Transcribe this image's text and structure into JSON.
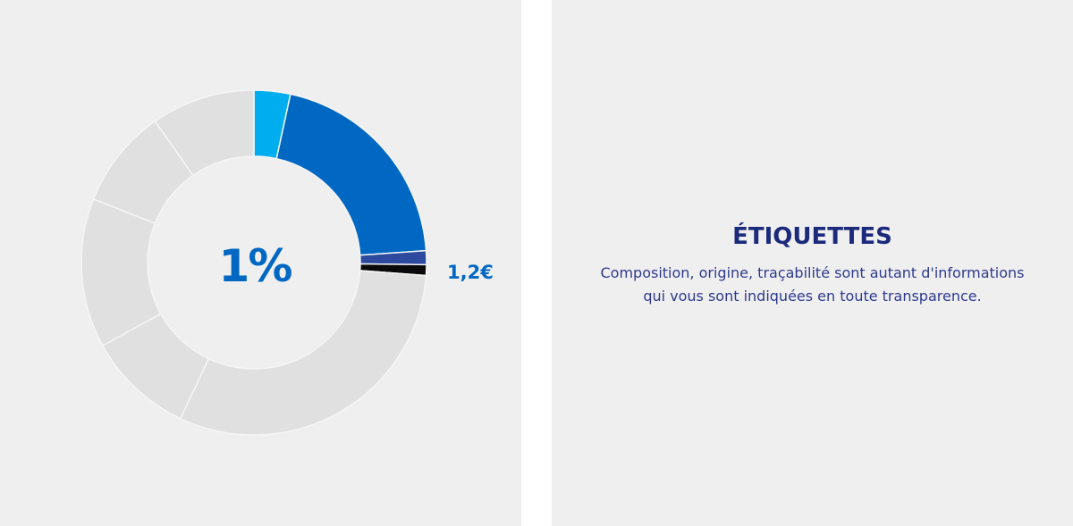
{
  "chart_data": {
    "type": "pie",
    "style": "donut",
    "center_label": "1%",
    "slices": [
      {
        "value": 3.4,
        "color": "#00aeef"
      },
      {
        "value": 20.5,
        "color": "#0068c3"
      },
      {
        "value": 1.3,
        "color": "#2d4a9e"
      },
      {
        "value": 1.0,
        "color": "#0a0a0a",
        "label": "1,2€",
        "highlighted": true
      },
      {
        "value": 30.8,
        "color": "#e0e0e0"
      },
      {
        "value": 10.0,
        "color": "#e0e0e0"
      },
      {
        "value": 14.0,
        "color": "#e0e0e0"
      },
      {
        "value": 9.3,
        "color": "#e0e0e0"
      },
      {
        "value": 9.7,
        "color": "#e0e0e0"
      }
    ],
    "highlight_label": "1,2€"
  },
  "info": {
    "title": "ÉTIQUETTES",
    "text_line1": "Composition, origine, traçabilité sont autant d'informations",
    "text_line2": "qui vous sont indiquées en toute transparence."
  },
  "colors": {
    "panel_background": "#efeff0",
    "accent_blue": "#0068c3",
    "title_navy": "#1b2a7a"
  }
}
